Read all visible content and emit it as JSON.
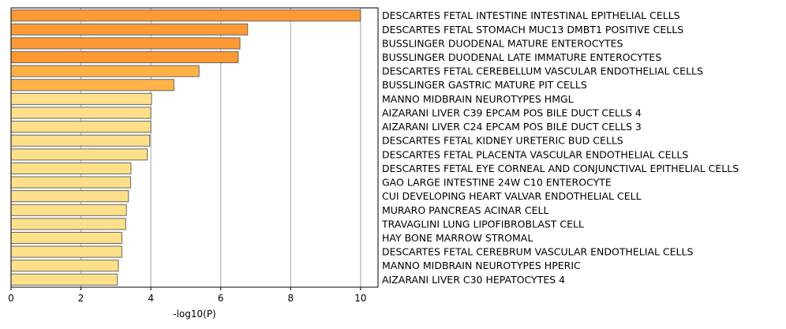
{
  "chart_data": {
    "type": "bar",
    "orientation": "horizontal",
    "xlabel": "-log10(P)",
    "ylabel": "",
    "title": "",
    "xlim": [
      0,
      10.5
    ],
    "xticks": [
      0,
      2,
      4,
      6,
      8,
      10
    ],
    "grid": "vertical",
    "categories": [
      "DESCARTES FETAL INTESTINE INTESTINAL EPITHELIAL CELLS",
      "DESCARTES FETAL STOMACH MUC13 DMBT1 POSITIVE CELLS",
      "BUSSLINGER DUODENAL MATURE ENTEROCYTES",
      "BUSSLINGER DUODENAL LATE IMMATURE ENTEROCYTES",
      "DESCARTES FETAL CEREBELLUM VASCULAR ENDOTHELIAL CELLS",
      "BUSSLINGER GASTRIC MATURE PIT CELLS",
      "MANNO MIDBRAIN NEUROTYPES HMGL",
      "AIZARANI LIVER C39 EPCAM POS BILE DUCT CELLS 4",
      "AIZARANI LIVER C24 EPCAM POS BILE DUCT CELLS 3",
      "DESCARTES FETAL KIDNEY URETERIC BUD CELLS",
      "DESCARTES FETAL PLACENTA VASCULAR ENDOTHELIAL CELLS",
      "DESCARTES FETAL EYE CORNEAL AND CONJUNCTIVAL EPITHELIAL CELLS",
      "GAO LARGE INTESTINE 24W C10 ENTEROCYTE",
      "CUI DEVELOPING HEART VALVAR ENDOTHELIAL CELL",
      "MURARO PANCREAS ACINAR CELL",
      "TRAVAGLINI LUNG LIPOFIBROBLAST CELL",
      "HAY BONE MARROW STROMAL",
      "DESCARTES FETAL CEREBRUM VASCULAR ENDOTHELIAL CELLS",
      "MANNO MIDBRAIN NEUROTYPES HPERIC",
      "AIZARANI LIVER C30 HEPATOCYTES 4"
    ],
    "values": [
      10.0,
      6.77,
      6.55,
      6.5,
      5.38,
      4.66,
      4.02,
      4.0,
      4.0,
      3.97,
      3.9,
      3.43,
      3.42,
      3.36,
      3.3,
      3.28,
      3.17,
      3.17,
      3.07,
      3.04
    ],
    "bar_colors": [
      "#ff9933",
      "#ff9933",
      "#ff9933",
      "#ff9933",
      "#ffb347",
      "#ffb347",
      "#ffe08a",
      "#ffe08a",
      "#ffe08a",
      "#ffe08a",
      "#ffe08a",
      "#ffe08a",
      "#ffe08a",
      "#ffe08a",
      "#ffe08a",
      "#ffe08a",
      "#ffe08a",
      "#ffe08a",
      "#ffe08a",
      "#ffe08a"
    ],
    "bar_edge_color": "#666666",
    "grid_color": "#b0b0b0"
  }
}
